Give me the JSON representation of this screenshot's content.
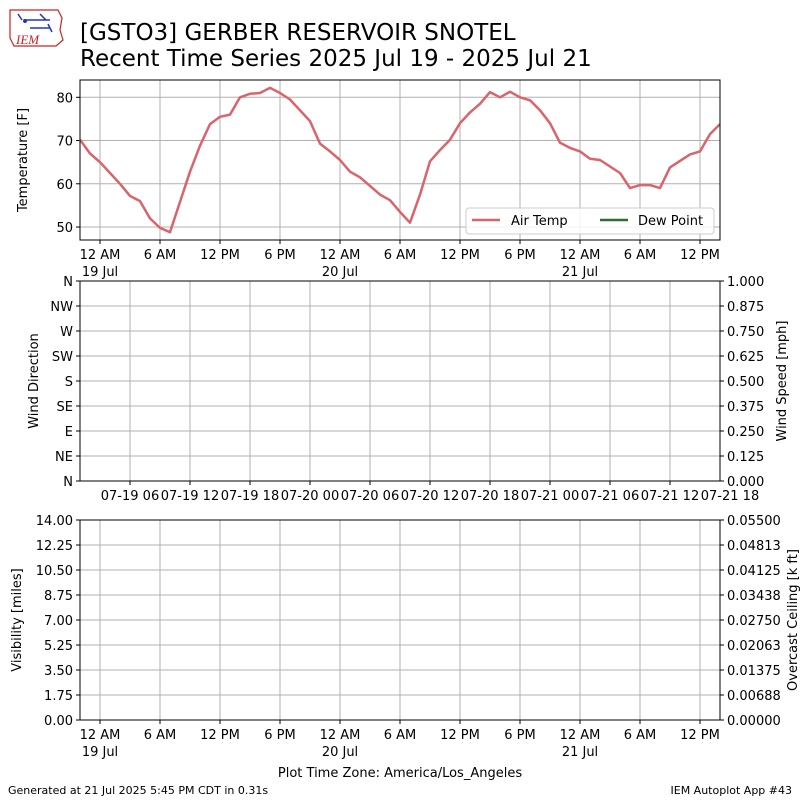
{
  "title_line1": "[GSTO3] GERBER RESERVOIR SNOTEL",
  "title_line2": "Recent Time Series 2025 Jul 19 - 2025 Jul 21",
  "logo_text": "IEM",
  "footer_left": "Generated at 21 Jul 2025 5:45 PM CDT in 0.31s",
  "footer_right": "IEM Autoplot App #43",
  "colors": {
    "air_temp": "#d9646b",
    "dew_point": "#2f6b34",
    "ceiling_label": "#008000",
    "logo": "#cc2222"
  },
  "chart_data": [
    {
      "type": "line",
      "ylabel": "Temperature [F]",
      "xlim_hours": [
        -2,
        62
      ],
      "ylim": [
        47,
        84
      ],
      "yticks": [
        "50",
        "60",
        "70",
        "80"
      ],
      "ytick_values": [
        50,
        60,
        70,
        80
      ],
      "xticks": [
        {
          "h": 0,
          "l1": "12 AM",
          "l2": "19 Jul"
        },
        {
          "h": 6,
          "l1": "6 AM",
          "l2": ""
        },
        {
          "h": 12,
          "l1": "12 PM",
          "l2": ""
        },
        {
          "h": 18,
          "l1": "6 PM",
          "l2": ""
        },
        {
          "h": 24,
          "l1": "12 AM",
          "l2": "20 Jul"
        },
        {
          "h": 30,
          "l1": "6 AM",
          "l2": ""
        },
        {
          "h": 36,
          "l1": "12 PM",
          "l2": ""
        },
        {
          "h": 42,
          "l1": "6 PM",
          "l2": ""
        },
        {
          "h": 48,
          "l1": "12 AM",
          "l2": "21 Jul"
        },
        {
          "h": 54,
          "l1": "6 AM",
          "l2": ""
        },
        {
          "h": 60,
          "l1": "12 PM",
          "l2": ""
        }
      ],
      "grid": true,
      "legend_placement": "lower-right",
      "series": [
        {
          "name": "Air Temp",
          "x": [
            -2,
            -1,
            0,
            1,
            2,
            3,
            4,
            5,
            6,
            7,
            8,
            9,
            10,
            11,
            12,
            13,
            14,
            15,
            16,
            17,
            18,
            19,
            20,
            21,
            22,
            23,
            24,
            25,
            26,
            27,
            28,
            29,
            30,
            31,
            32,
            33,
            34,
            35,
            36,
            37,
            38,
            39,
            40,
            41,
            42,
            43,
            44,
            45,
            46,
            47,
            48,
            49,
            50,
            51,
            52,
            53,
            54,
            55,
            56,
            57,
            58,
            59,
            60,
            61,
            62
          ],
          "values": [
            70.2,
            67.0,
            65.0,
            62.5,
            60.0,
            57.2,
            56.0,
            52.0,
            49.8,
            48.8,
            55.8,
            62.8,
            68.8,
            73.8,
            75.5,
            76.0,
            80.0,
            80.8,
            81.0,
            82.2,
            81.0,
            79.5,
            77.0,
            74.5,
            69.3,
            67.5,
            65.5,
            62.8,
            61.5,
            59.5,
            57.5,
            56.2,
            53.5,
            51.0,
            57.5,
            65.2,
            67.8,
            70.2,
            74.0,
            76.5,
            78.5,
            81.2,
            80.0,
            81.3,
            80.0,
            79.3,
            77.0,
            74.0,
            69.5,
            68.3,
            67.5,
            65.8,
            65.5,
            64.0,
            62.5,
            59.0,
            59.7,
            59.7,
            59.0,
            63.8,
            65.3,
            66.8,
            67.5,
            71.5,
            73.8
          ]
        },
        {
          "name": "Dew Point",
          "x": [],
          "values": []
        }
      ]
    },
    {
      "type": "scatter",
      "ylabel": "Wind Direction",
      "ylabel_right": "Wind Speed [mph]",
      "ylim": [
        0,
        360
      ],
      "yticks": [
        "N",
        "NE",
        "E",
        "SE",
        "S",
        "SW",
        "W",
        "NW",
        "N"
      ],
      "yticks_right": [
        "0.000",
        "0.125",
        "0.250",
        "0.375",
        "0.500",
        "0.625",
        "0.750",
        "0.875",
        "1.000"
      ],
      "ylim_right": [
        0,
        1
      ],
      "xlim_hours": [
        -2,
        62
      ],
      "xticks": [
        {
          "h": 3,
          "l1": "07-19 06"
        },
        {
          "h": 9,
          "l1": "07-19 12"
        },
        {
          "h": 15,
          "l1": "07-19 18"
        },
        {
          "h": 21,
          "l1": "07-20 00"
        },
        {
          "h": 27,
          "l1": "07-20 06"
        },
        {
          "h": 33,
          "l1": "07-20 12"
        },
        {
          "h": 39,
          "l1": "07-20 18"
        },
        {
          "h": 45,
          "l1": "07-21 00"
        },
        {
          "h": 51,
          "l1": "07-21 06"
        },
        {
          "h": 57,
          "l1": "07-21 12"
        },
        {
          "h": 63,
          "l1": "07-21 18"
        }
      ],
      "grid": true,
      "series": []
    },
    {
      "type": "line",
      "ylabel": "Visibility [miles]",
      "ylabel_right": "Overcast Ceiling [k ft]",
      "ylim": [
        0,
        14
      ],
      "yticks": [
        "0.00",
        "1.75",
        "3.50",
        "5.25",
        "7.00",
        "8.75",
        "10.50",
        "12.25",
        "14.00"
      ],
      "ylim_right": [
        0,
        0.055
      ],
      "yticks_right": [
        "0.00000",
        "0.00688",
        "0.01375",
        "0.02063",
        "0.02750",
        "0.03438",
        "0.04125",
        "0.04813",
        "0.05500"
      ],
      "xlim_hours": [
        -2,
        62
      ],
      "xlabel": "Plot Time Zone: America/Los_Angeles",
      "xticks": [
        {
          "h": 0,
          "l1": "12 AM",
          "l2": "19 Jul"
        },
        {
          "h": 6,
          "l1": "6 AM",
          "l2": ""
        },
        {
          "h": 12,
          "l1": "12 PM",
          "l2": ""
        },
        {
          "h": 18,
          "l1": "6 PM",
          "l2": ""
        },
        {
          "h": 24,
          "l1": "12 AM",
          "l2": "20 Jul"
        },
        {
          "h": 30,
          "l1": "6 AM",
          "l2": ""
        },
        {
          "h": 36,
          "l1": "12 PM",
          "l2": ""
        },
        {
          "h": 42,
          "l1": "6 PM",
          "l2": ""
        },
        {
          "h": 48,
          "l1": "12 AM",
          "l2": "21 Jul"
        },
        {
          "h": 54,
          "l1": "6 AM",
          "l2": ""
        },
        {
          "h": 60,
          "l1": "12 PM",
          "l2": ""
        }
      ],
      "grid": true,
      "series": []
    }
  ]
}
